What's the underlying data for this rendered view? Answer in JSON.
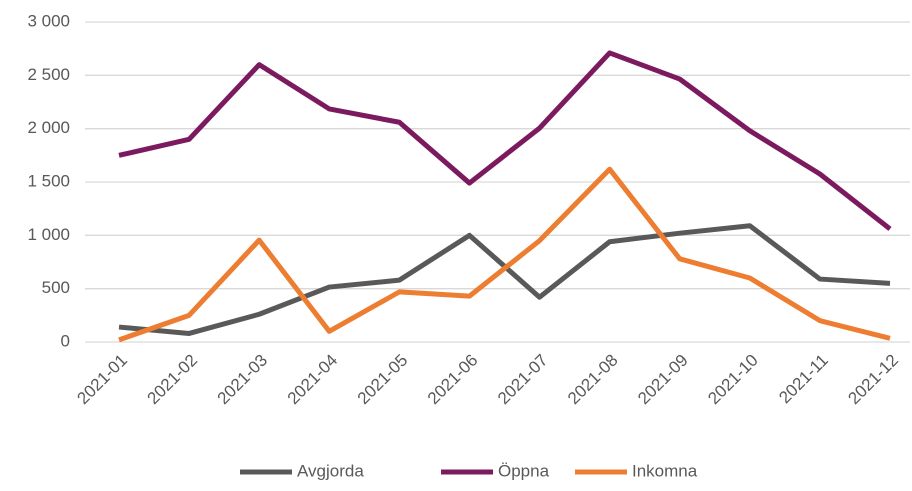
{
  "chart_data": {
    "type": "line",
    "categories": [
      "2021-01",
      "2021-02",
      "2021-03",
      "2021-04",
      "2021-05",
      "2021-06",
      "2021-07",
      "2021-08",
      "2021-09",
      "2021-10",
      "2021-11",
      "2021-12"
    ],
    "series": [
      {
        "name": "Avgjorda",
        "color": "#595959",
        "values": [
          140,
          80,
          260,
          515,
          580,
          1000,
          420,
          940,
          1020,
          1090,
          590,
          550
        ]
      },
      {
        "name": "Öppna",
        "color": "#7b1a5e",
        "values": [
          1750,
          1900,
          2600,
          2185,
          2060,
          1490,
          2005,
          2710,
          2465,
          1980,
          1575,
          1060
        ]
      },
      {
        "name": "Inkomna",
        "color": "#ed7d31",
        "values": [
          20,
          250,
          955,
          100,
          470,
          430,
          950,
          1620,
          780,
          600,
          200,
          35
        ]
      }
    ],
    "ylim": [
      0,
      3000
    ],
    "yticks": [
      0,
      500,
      {
        "value": 1000,
        "label": "1 000"
      },
      {
        "value": 1500,
        "label": "1 500"
      },
      {
        "value": 2000,
        "label": "2 000"
      },
      {
        "value": 2500,
        "label": "2 500"
      },
      {
        "value": 3000,
        "label": "3 000"
      }
    ],
    "grid": true,
    "legend": "bottom"
  }
}
